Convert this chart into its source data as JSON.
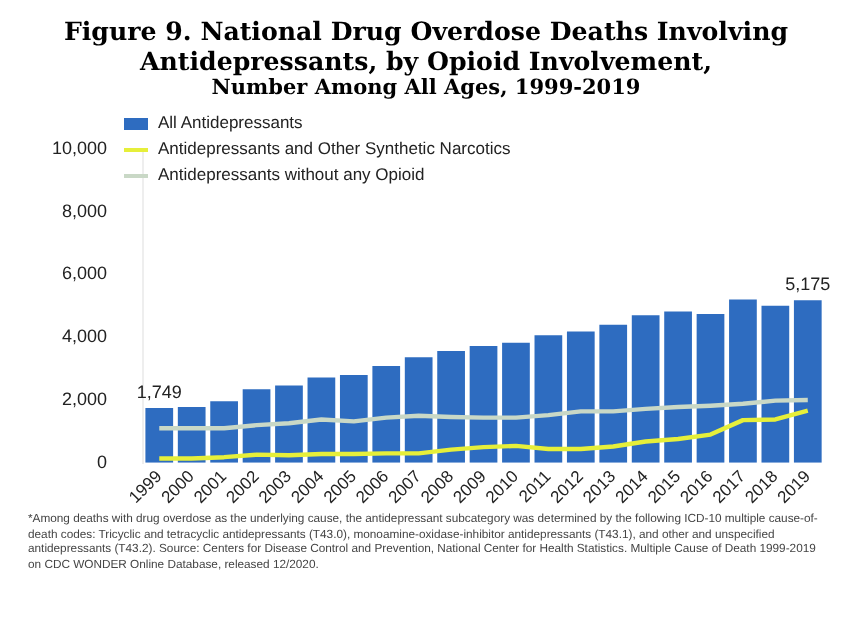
{
  "chart_data": {
    "type": "bar",
    "title": "Figure 9. National Drug Overdose Deaths Involving Antidepressants, by Opioid Involvement,",
    "subtitle": "Number Among All Ages, 1999-2019",
    "categories": [
      "1999",
      "2000",
      "2001",
      "2002",
      "2003",
      "2004",
      "2005",
      "2006",
      "2007",
      "2008",
      "2009",
      "2010",
      "2011",
      "2012",
      "2013",
      "2014",
      "2015",
      "2016",
      "2017",
      "2018",
      "2019"
    ],
    "series": [
      {
        "name": "All Antidepressants",
        "color": "#2e6cc0",
        "values": [
          1749,
          1780,
          1960,
          2340,
          2460,
          2720,
          2800,
          3080,
          3360,
          3560,
          3720,
          3820,
          4060,
          4180,
          4400,
          4700,
          4820,
          4740,
          5200,
          5000,
          5175
        ],
        "value_labels": [
          "1,749",
          null,
          null,
          null,
          null,
          null,
          null,
          null,
          null,
          null,
          null,
          null,
          null,
          null,
          null,
          null,
          null,
          null,
          null,
          null,
          "5,175"
        ]
      },
      {
        "name": "Antidepressants and Other Synthetic Narcotics",
        "type": "line",
        "color": "#e6ef3a",
        "values": [
          140,
          140,
          180,
          260,
          240,
          280,
          280,
          300,
          300,
          420,
          500,
          540,
          440,
          440,
          520,
          680,
          760,
          900,
          1360,
          1380,
          1660
        ]
      },
      {
        "name": "Antidepressants without any Opioid",
        "type": "line",
        "color": "#c9d8c6",
        "values": [
          1100,
          1100,
          1100,
          1200,
          1260,
          1380,
          1320,
          1440,
          1500,
          1460,
          1440,
          1440,
          1520,
          1640,
          1640,
          1720,
          1780,
          1820,
          1880,
          1980,
          2000
        ]
      }
    ],
    "ylim": [
      0,
      10000
    ],
    "yticks": [
      0,
      {
        "value": 2000,
        "label": "2,000"
      },
      {
        "value": 4000,
        "label": "4,000"
      },
      {
        "value": 6000,
        "label": "6,000"
      },
      {
        "value": 8000,
        "label": "8,000"
      },
      {
        "value": 10000,
        "label": "10,000"
      }
    ],
    "grid": false,
    "legend": "top left",
    "marker": "none",
    "annotations": [
      "*Among deaths with drug overdose as the underlying cause, the antidepressant subcategory was determined by the following ICD-10 multiple cause-of-death codes: Tricyclic and tetracyclic antidepressants (T43.0), monoamine-oxidase-inhibitor antidepressants (T43.1), and other and unspecified antidepressants (T43.2). Source: Centers for Disease Control and Prevention, National Center for Health Statistics. Multiple Cause of Death 1999-2019 on CDC WONDER Online Database, released 12/2020."
    ]
  }
}
